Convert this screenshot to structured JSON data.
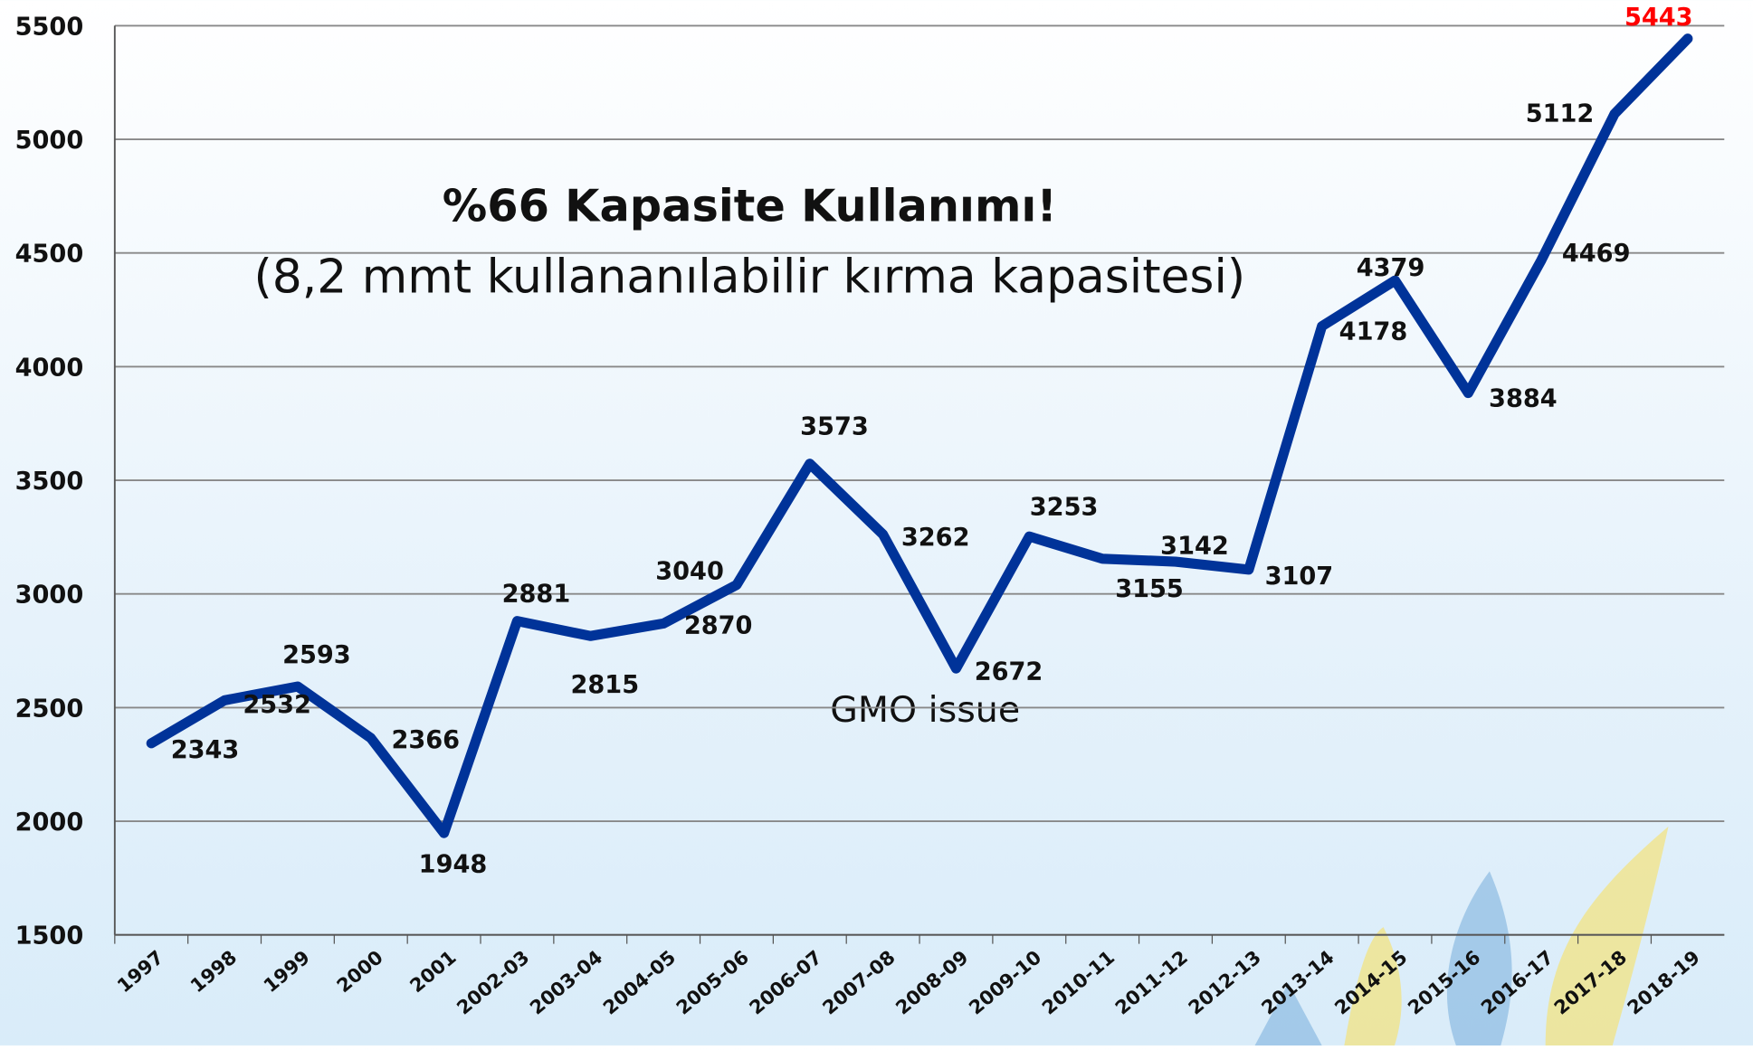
{
  "chart_data": {
    "type": "line",
    "title": "%66 Kapasite Kullanımı!",
    "subtitle": "(8,2 mmt kullananılabilir kırma kapasitesi)",
    "annotation": "GMO  issue",
    "categories": [
      "1997",
      "1998",
      "1999",
      "2000",
      "2001",
      "2002-03",
      "2003-04",
      "2004-05",
      "2005-06",
      "2006-07",
      "2007-08",
      "2008-09",
      "2009-10",
      "2010-11",
      "2011-12",
      "2012-13",
      "2013-14",
      "2014-15",
      "2015-16",
      "2016-17",
      "2017-18",
      "2018-19"
    ],
    "values": [
      2343,
      2532,
      2593,
      2366,
      1948,
      2881,
      2815,
      2870,
      3040,
      3573,
      3262,
      2672,
      3253,
      3155,
      3142,
      3107,
      4178,
      4379,
      3884,
      4469,
      5112,
      5443
    ],
    "color": "#003399",
    "highlight_color": "#ff0000",
    "ylim": [
      1500,
      5500
    ],
    "yticks": [
      1500,
      2000,
      2500,
      3000,
      3500,
      4000,
      4500,
      5000,
      5500
    ],
    "grid": true
  }
}
